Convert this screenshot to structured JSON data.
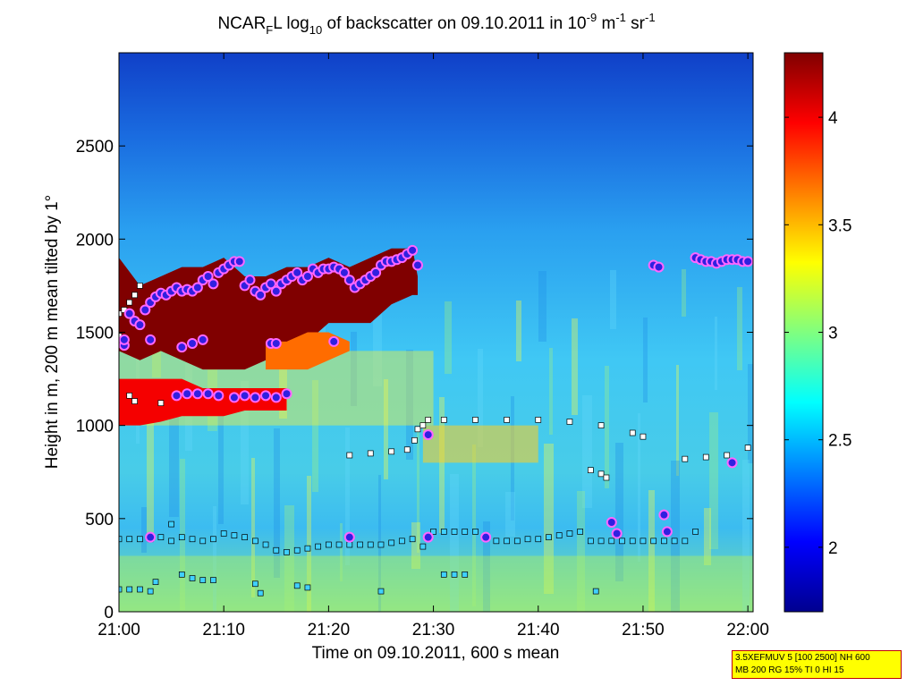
{
  "chart_data": {
    "type": "heatmap",
    "title": {
      "prefix": "NCAR",
      "sub1": "F",
      "mid1": "L log",
      "sub2": "10",
      "mid2": " of backscatter on 09.10.2011 in 10",
      "sup1": "-9",
      "mid3": " m",
      "sup2": "-1",
      "mid4": " sr",
      "sup3": "-1"
    },
    "xlabel": "Time on 09.10.2011, 600 s mean",
    "ylabel": "Height in m, 200 m mean tilted by 1°",
    "x_ticks": [
      {
        "value": 0,
        "label": "21:00"
      },
      {
        "value": 10,
        "label": "21:10"
      },
      {
        "value": 20,
        "label": "21:20"
      },
      {
        "value": 30,
        "label": "21:30"
      },
      {
        "value": 40,
        "label": "21:40"
      },
      {
        "value": 50,
        "label": "21:50"
      },
      {
        "value": 60,
        "label": "22:00"
      }
    ],
    "xlim": [
      0,
      60.5
    ],
    "y_ticks": [
      0,
      500,
      1000,
      1500,
      2000,
      2500
    ],
    "ylim": [
      0,
      3000
    ],
    "colorbar": {
      "ticks": [
        2,
        2.5,
        3,
        3.5,
        4
      ],
      "range": [
        1.7,
        4.3
      ],
      "colormap": "jet"
    },
    "layers": [
      {
        "x": [
          0,
          2,
          4,
          6,
          8,
          10,
          12,
          14,
          16,
          18,
          20,
          22,
          24,
          26,
          28,
          28.5
        ],
        "top": [
          1900,
          1750,
          1800,
          1850,
          1850,
          1900,
          1800,
          1800,
          1850,
          1850,
          1900,
          1850,
          1900,
          1950,
          1950,
          1800
        ],
        "bottom": [
          1400,
          1350,
          1400,
          1350,
          1300,
          1300,
          1300,
          1350,
          1400,
          1450,
          1550,
          1550,
          1550,
          1650,
          1700,
          1700
        ],
        "value": 4.3
      },
      {
        "x": [
          0,
          2,
          4,
          6,
          8,
          10,
          12,
          14,
          16
        ],
        "top": [
          1250,
          1250,
          1250,
          1250,
          1200,
          1200,
          1200,
          1200,
          1200
        ],
        "bottom": [
          1000,
          1000,
          1020,
          1050,
          1050,
          1050,
          1080,
          1080,
          1080
        ],
        "value": 4.0
      },
      {
        "x": [
          14,
          16,
          18,
          20,
          22
        ],
        "top": [
          1450,
          1450,
          1500,
          1500,
          1450
        ],
        "bottom": [
          1300,
          1300,
          1300,
          1350,
          1400
        ],
        "value": 3.7
      }
    ],
    "cloud_top_markers": [
      {
        "x": 0.5,
        "y": 1430
      },
      {
        "x": 1,
        "y": 1600
      },
      {
        "x": 1.5,
        "y": 1560
      },
      {
        "x": 2,
        "y": 1540
      },
      {
        "x": 2.5,
        "y": 1620
      },
      {
        "x": 3,
        "y": 1660
      },
      {
        "x": 3.5,
        "y": 1690
      },
      {
        "x": 4,
        "y": 1710
      },
      {
        "x": 4.5,
        "y": 1700
      },
      {
        "x": 5,
        "y": 1720
      },
      {
        "x": 5.5,
        "y": 1740
      },
      {
        "x": 6,
        "y": 1720
      },
      {
        "x": 6.5,
        "y": 1730
      },
      {
        "x": 7,
        "y": 1720
      },
      {
        "x": 7.5,
        "y": 1740
      },
      {
        "x": 8,
        "y": 1780
      },
      {
        "x": 8.5,
        "y": 1800
      },
      {
        "x": 9,
        "y": 1760
      },
      {
        "x": 9.5,
        "y": 1820
      },
      {
        "x": 10,
        "y": 1840
      },
      {
        "x": 10.5,
        "y": 1860
      },
      {
        "x": 11,
        "y": 1880
      },
      {
        "x": 11.5,
        "y": 1880
      },
      {
        "x": 12,
        "y": 1750
      },
      {
        "x": 12.5,
        "y": 1780
      },
      {
        "x": 13,
        "y": 1720
      },
      {
        "x": 13.5,
        "y": 1700
      },
      {
        "x": 14,
        "y": 1740
      },
      {
        "x": 14.5,
        "y": 1760
      },
      {
        "x": 15,
        "y": 1720
      },
      {
        "x": 15.5,
        "y": 1760
      },
      {
        "x": 16,
        "y": 1780
      },
      {
        "x": 16.5,
        "y": 1800
      },
      {
        "x": 17,
        "y": 1820
      },
      {
        "x": 17.5,
        "y": 1780
      },
      {
        "x": 18,
        "y": 1800
      },
      {
        "x": 18.5,
        "y": 1840
      },
      {
        "x": 19,
        "y": 1820
      },
      {
        "x": 19.5,
        "y": 1840
      },
      {
        "x": 20,
        "y": 1840
      },
      {
        "x": 20.5,
        "y": 1850
      },
      {
        "x": 21,
        "y": 1840
      },
      {
        "x": 21.5,
        "y": 1820
      },
      {
        "x": 22,
        "y": 1780
      },
      {
        "x": 22.5,
        "y": 1740
      },
      {
        "x": 23,
        "y": 1760
      },
      {
        "x": 23.5,
        "y": 1780
      },
      {
        "x": 24,
        "y": 1800
      },
      {
        "x": 24.5,
        "y": 1820
      },
      {
        "x": 25,
        "y": 1860
      },
      {
        "x": 25.5,
        "y": 1880
      },
      {
        "x": 26,
        "y": 1880
      },
      {
        "x": 26.5,
        "y": 1890
      },
      {
        "x": 27,
        "y": 1900
      },
      {
        "x": 27.5,
        "y": 1920
      },
      {
        "x": 28,
        "y": 1940
      },
      {
        "x": 28.5,
        "y": 1860
      },
      {
        "x": 0.5,
        "y": 1460
      },
      {
        "x": 3,
        "y": 1460
      },
      {
        "x": 6,
        "y": 1420
      },
      {
        "x": 7,
        "y": 1440
      },
      {
        "x": 8,
        "y": 1460
      },
      {
        "x": 14.5,
        "y": 1440
      },
      {
        "x": 15,
        "y": 1440
      },
      {
        "x": 20.5,
        "y": 1450
      },
      {
        "x": 5.5,
        "y": 1160
      },
      {
        "x": 6.5,
        "y": 1170
      },
      {
        "x": 7.5,
        "y": 1170
      },
      {
        "x": 8.5,
        "y": 1170
      },
      {
        "x": 9.5,
        "y": 1160
      },
      {
        "x": 11,
        "y": 1150
      },
      {
        "x": 12,
        "y": 1160
      },
      {
        "x": 13,
        "y": 1150
      },
      {
        "x": 14,
        "y": 1160
      },
      {
        "x": 15,
        "y": 1150
      },
      {
        "x": 16,
        "y": 1170
      },
      {
        "x": 29.5,
        "y": 950
      },
      {
        "x": 51,
        "y": 1860
      },
      {
        "x": 51.5,
        "y": 1850
      },
      {
        "x": 55,
        "y": 1900
      },
      {
        "x": 55.5,
        "y": 1890
      },
      {
        "x": 56,
        "y": 1880
      },
      {
        "x": 56.5,
        "y": 1880
      },
      {
        "x": 57,
        "y": 1870
      },
      {
        "x": 57.5,
        "y": 1880
      },
      {
        "x": 58,
        "y": 1890
      },
      {
        "x": 58.5,
        "y": 1890
      },
      {
        "x": 59,
        "y": 1890
      },
      {
        "x": 59.5,
        "y": 1880
      },
      {
        "x": 60,
        "y": 1880
      },
      {
        "x": 58.5,
        "y": 800
      },
      {
        "x": 3,
        "y": 400
      },
      {
        "x": 22,
        "y": 400
      },
      {
        "x": 29.5,
        "y": 400
      },
      {
        "x": 35,
        "y": 400
      },
      {
        "x": 47,
        "y": 480
      },
      {
        "x": 47.5,
        "y": 420
      },
      {
        "x": 52,
        "y": 520
      },
      {
        "x": 52.3,
        "y": 430
      }
    ],
    "cloud_base_markers": [
      {
        "x": 4,
        "y": 1120
      },
      {
        "x": 16,
        "y": 1170
      },
      {
        "x": 22,
        "y": 840
      },
      {
        "x": 24,
        "y": 850
      },
      {
        "x": 26,
        "y": 860
      },
      {
        "x": 27.5,
        "y": 870
      },
      {
        "x": 28.2,
        "y": 920
      },
      {
        "x": 28.5,
        "y": 980
      },
      {
        "x": 29,
        "y": 1000
      },
      {
        "x": 29.5,
        "y": 1030
      },
      {
        "x": 31,
        "y": 1030
      },
      {
        "x": 34,
        "y": 1030
      },
      {
        "x": 37,
        "y": 1030
      },
      {
        "x": 40,
        "y": 1030
      },
      {
        "x": 43,
        "y": 1020
      },
      {
        "x": 46,
        "y": 1000
      },
      {
        "x": 49,
        "y": 960
      },
      {
        "x": 50,
        "y": 940
      },
      {
        "x": 45,
        "y": 760
      },
      {
        "x": 46,
        "y": 740
      },
      {
        "x": 46.5,
        "y": 720
      },
      {
        "x": 54,
        "y": 820
      },
      {
        "x": 56,
        "y": 830
      },
      {
        "x": 58,
        "y": 840
      },
      {
        "x": 60,
        "y": 880
      },
      {
        "x": 0,
        "y": 1600
      },
      {
        "x": 0.5,
        "y": 1620
      },
      {
        "x": 1,
        "y": 1660
      },
      {
        "x": 1.5,
        "y": 1700
      },
      {
        "x": 2,
        "y": 1750
      },
      {
        "x": 0,
        "y": 1480
      },
      {
        "x": 0.5,
        "y": 1460
      },
      {
        "x": 1,
        "y": 1160
      },
      {
        "x": 1.5,
        "y": 1130
      }
    ],
    "low_markers": [
      {
        "x": 0,
        "y": 390
      },
      {
        "x": 1,
        "y": 390
      },
      {
        "x": 2,
        "y": 390
      },
      {
        "x": 3,
        "y": 390
      },
      {
        "x": 4,
        "y": 400
      },
      {
        "x": 5,
        "y": 380
      },
      {
        "x": 6,
        "y": 400
      },
      {
        "x": 7,
        "y": 390
      },
      {
        "x": 8,
        "y": 380
      },
      {
        "x": 9,
        "y": 390
      },
      {
        "x": 10,
        "y": 420
      },
      {
        "x": 11,
        "y": 410
      },
      {
        "x": 12,
        "y": 400
      },
      {
        "x": 13,
        "y": 380
      },
      {
        "x": 14,
        "y": 360
      },
      {
        "x": 15,
        "y": 330
      },
      {
        "x": 16,
        "y": 320
      },
      {
        "x": 17,
        "y": 330
      },
      {
        "x": 18,
        "y": 340
      },
      {
        "x": 19,
        "y": 350
      },
      {
        "x": 20,
        "y": 360
      },
      {
        "x": 21,
        "y": 360
      },
      {
        "x": 22,
        "y": 360
      },
      {
        "x": 23,
        "y": 360
      },
      {
        "x": 24,
        "y": 360
      },
      {
        "x": 25,
        "y": 360
      },
      {
        "x": 26,
        "y": 370
      },
      {
        "x": 27,
        "y": 380
      },
      {
        "x": 28,
        "y": 390
      },
      {
        "x": 29,
        "y": 350
      },
      {
        "x": 30,
        "y": 430
      },
      {
        "x": 31,
        "y": 430
      },
      {
        "x": 32,
        "y": 430
      },
      {
        "x": 33,
        "y": 430
      },
      {
        "x": 34,
        "y": 430
      },
      {
        "x": 35,
        "y": 400
      },
      {
        "x": 36,
        "y": 380
      },
      {
        "x": 37,
        "y": 380
      },
      {
        "x": 38,
        "y": 380
      },
      {
        "x": 39,
        "y": 390
      },
      {
        "x": 40,
        "y": 390
      },
      {
        "x": 41,
        "y": 400
      },
      {
        "x": 42,
        "y": 410
      },
      {
        "x": 43,
        "y": 420
      },
      {
        "x": 44,
        "y": 430
      },
      {
        "x": 45,
        "y": 380
      },
      {
        "x": 46,
        "y": 380
      },
      {
        "x": 47,
        "y": 380
      },
      {
        "x": 48,
        "y": 380
      },
      {
        "x": 49,
        "y": 380
      },
      {
        "x": 50,
        "y": 380
      },
      {
        "x": 51,
        "y": 380
      },
      {
        "x": 52,
        "y": 380
      },
      {
        "x": 53,
        "y": 380
      },
      {
        "x": 54,
        "y": 380
      },
      {
        "x": 55,
        "y": 430
      },
      {
        "x": 0,
        "y": 120
      },
      {
        "x": 1,
        "y": 120
      },
      {
        "x": 2,
        "y": 120
      },
      {
        "x": 3,
        "y": 110
      },
      {
        "x": 3.5,
        "y": 160
      },
      {
        "x": 6,
        "y": 200
      },
      {
        "x": 7,
        "y": 180
      },
      {
        "x": 8,
        "y": 170
      },
      {
        "x": 9,
        "y": 170
      },
      {
        "x": 13,
        "y": 150
      },
      {
        "x": 13.5,
        "y": 100
      },
      {
        "x": 17,
        "y": 140
      },
      {
        "x": 18,
        "y": 130
      },
      {
        "x": 25,
        "y": 110
      },
      {
        "x": 31,
        "y": 200
      },
      {
        "x": 32,
        "y": 200
      },
      {
        "x": 33,
        "y": 200
      },
      {
        "x": 45.5,
        "y": 110
      },
      {
        "x": 5,
        "y": 470
      }
    ],
    "colors": {
      "background_field": "#3fbff0",
      "upper_dark": "#1040c0",
      "layer_max": "#800000",
      "marker_top_fill": "#3020e0",
      "marker_top_outline": "#ff66ff",
      "marker_base_fill": "#ffffff",
      "marker_low_fill": "#40d0ff"
    }
  },
  "params_box": {
    "line1": "3.5XEFMUV 5 [100 2500] NH 600",
    "line2": "MB 200 RG 15% TI 0 HI 15"
  }
}
